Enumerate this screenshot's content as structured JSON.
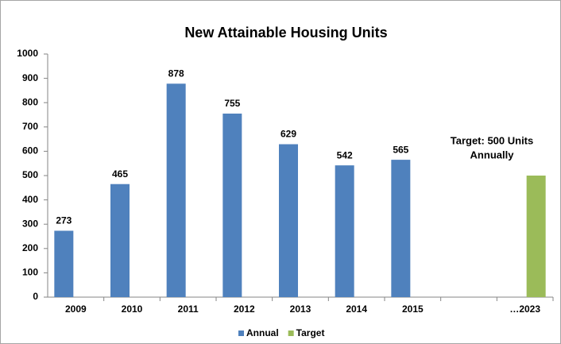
{
  "chart_data": {
    "type": "bar",
    "title": "New Attainable Housing Units",
    "categories": [
      "2009",
      "2010",
      "2011",
      "2012",
      "2013",
      "2014",
      "2015",
      null,
      "…2023"
    ],
    "series": [
      {
        "name": "Annual",
        "color": "#4f81bd",
        "labels": true,
        "values": [
          273,
          465,
          878,
          755,
          629,
          542,
          565,
          null,
          null
        ]
      },
      {
        "name": "Target",
        "color": "#9bbb59",
        "labels": false,
        "values": [
          null,
          null,
          null,
          null,
          null,
          null,
          null,
          null,
          500
        ]
      }
    ],
    "annotation": [
      "Target:  500 Units",
      "Annually"
    ],
    "ylim": [
      0,
      1000
    ],
    "yticks": [
      0,
      100,
      200,
      300,
      400,
      500,
      600,
      700,
      800,
      900,
      1000
    ],
    "grid": false,
    "legend": "bottom"
  }
}
